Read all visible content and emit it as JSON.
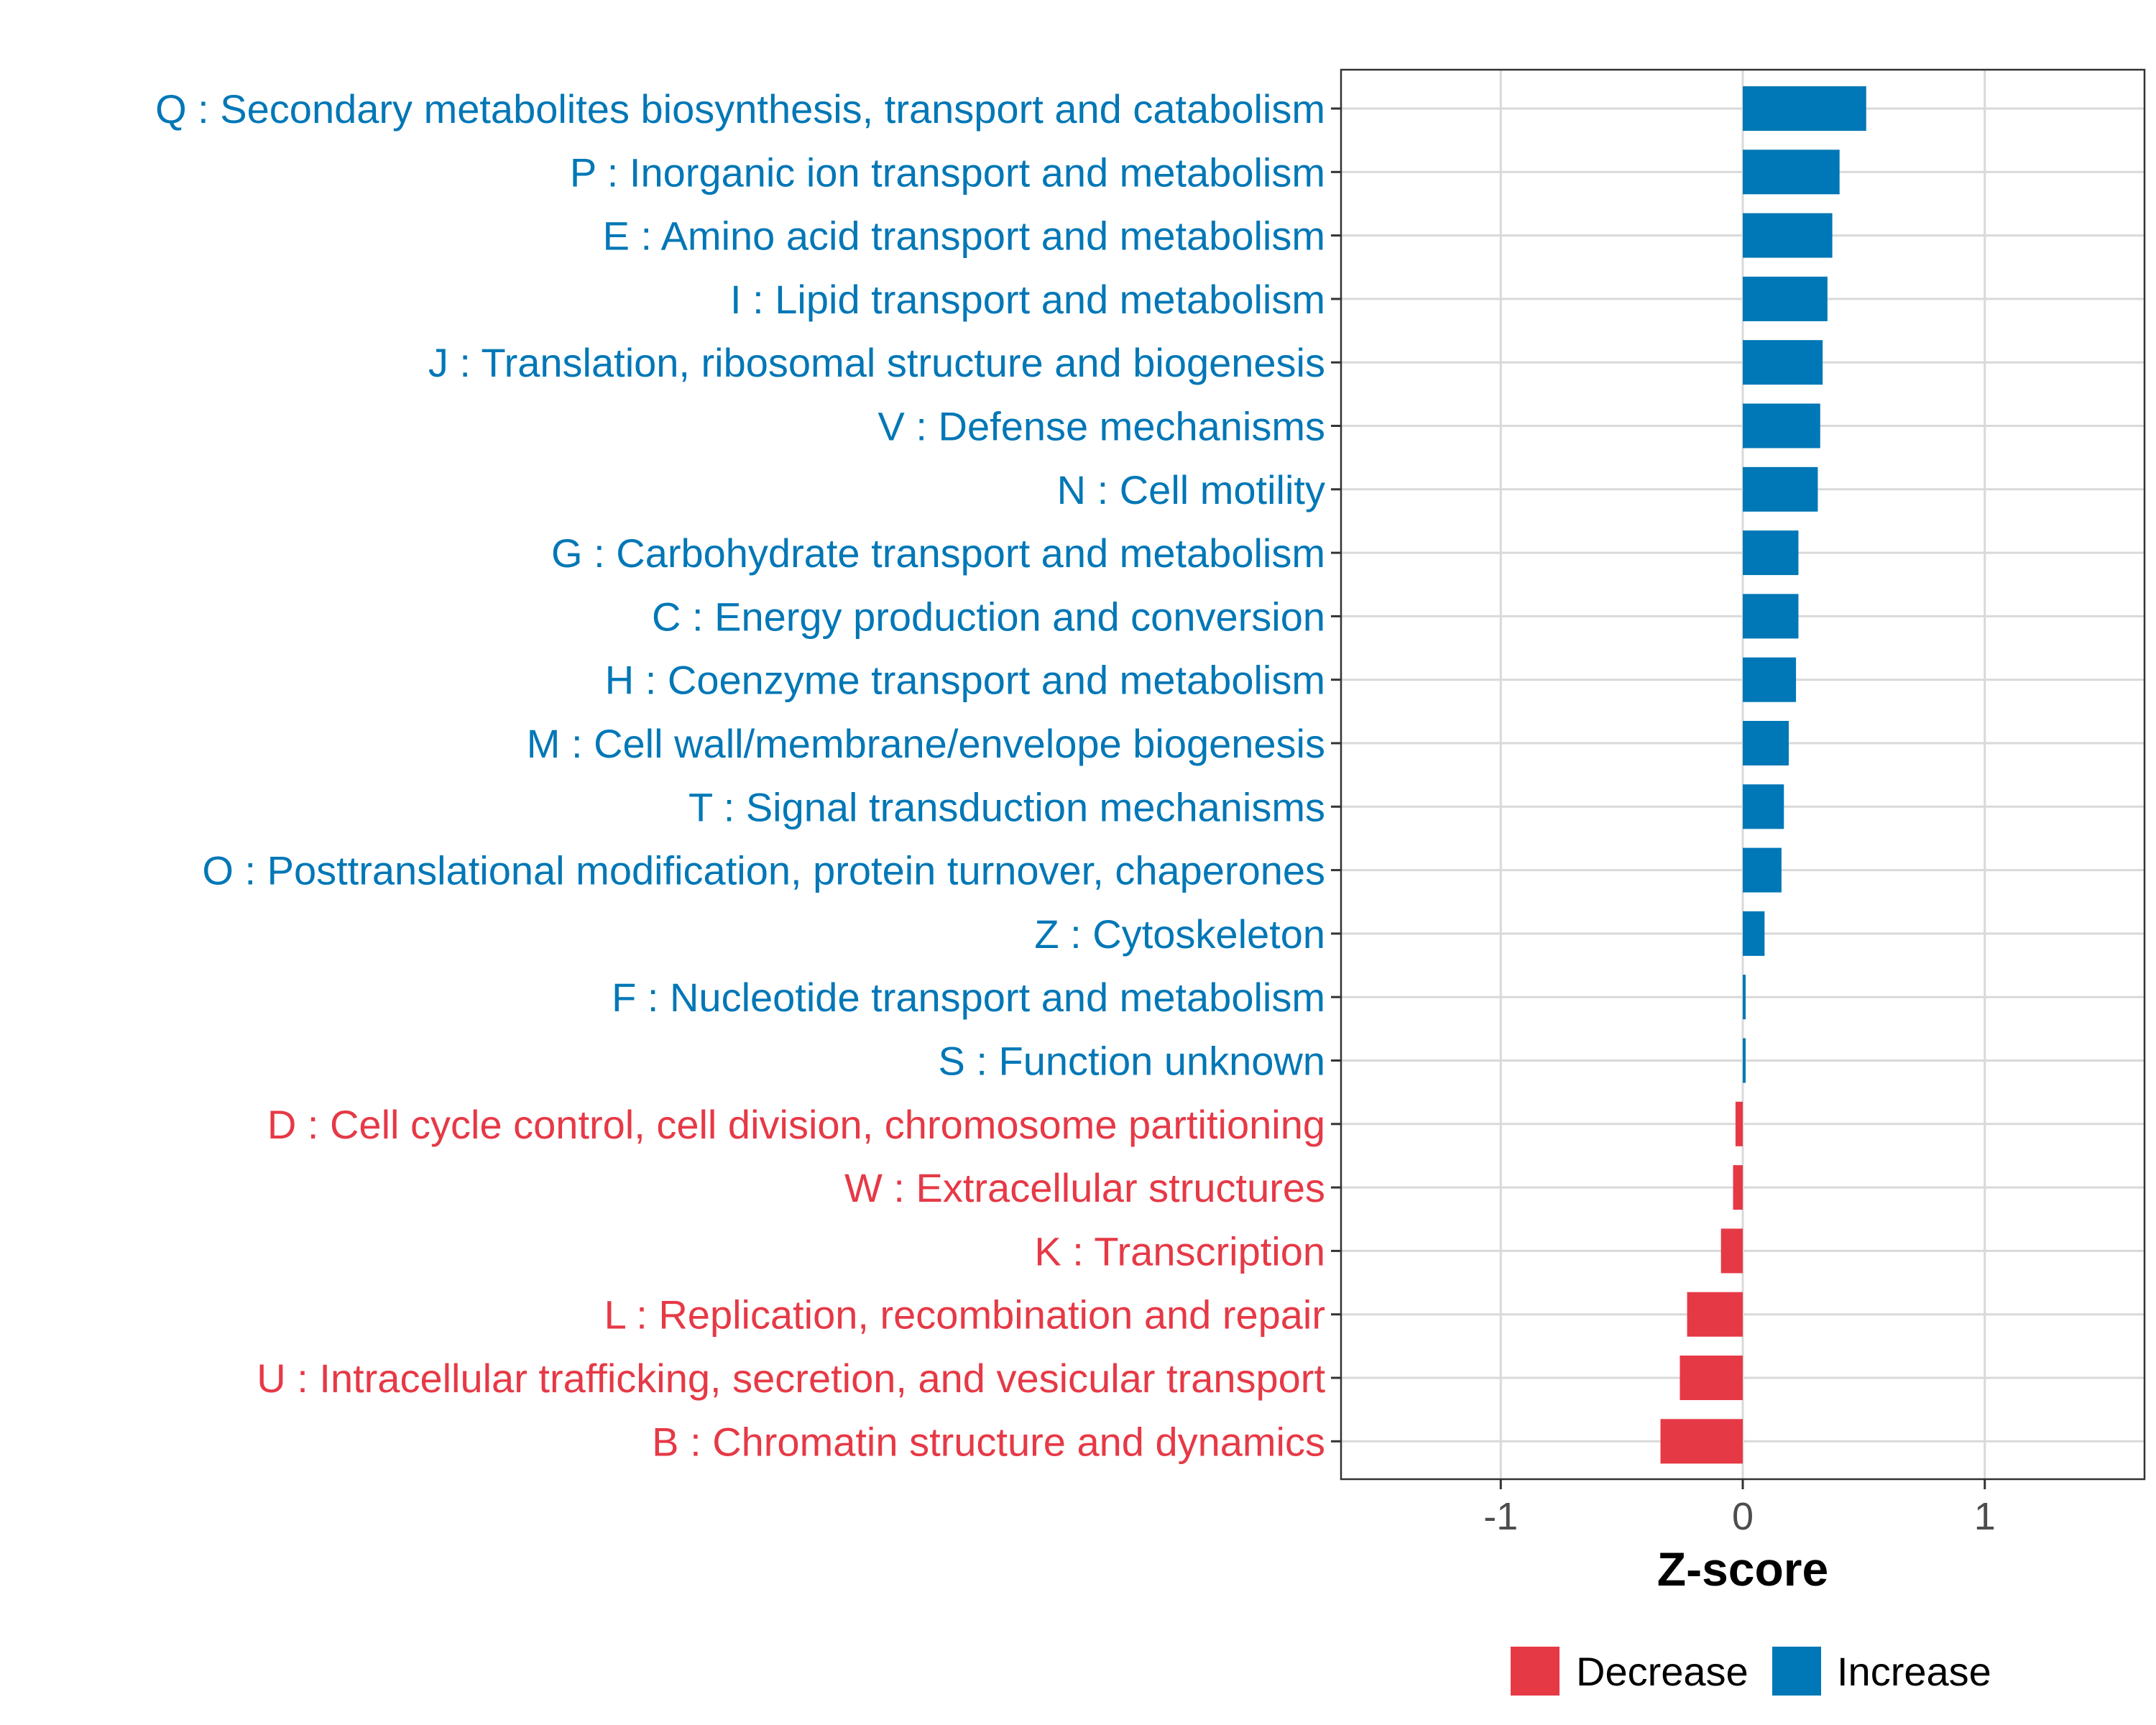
{
  "chart_data": {
    "type": "bar",
    "orientation": "horizontal",
    "xlabel": "Z-score",
    "xlim": [
      -1.66,
      1.66
    ],
    "xticks": [
      -1,
      0,
      1
    ],
    "xtick_labels": [
      "-1",
      "0",
      "1"
    ],
    "grid": true,
    "legend_position": "bottom",
    "legend": [
      {
        "key": "decrease",
        "label": "Decrease",
        "color": "#E63946"
      },
      {
        "key": "increase",
        "label": "Increase",
        "color": "#0077B6"
      }
    ],
    "categories": [
      "Q : Secondary metabolites biosynthesis, transport and catabolism",
      "P : Inorganic ion transport and metabolism",
      "E : Amino acid transport and metabolism",
      "I : Lipid transport and metabolism",
      "J : Translation, ribosomal structure and biogenesis",
      "V : Defense mechanisms",
      "N : Cell motility",
      "G : Carbohydrate transport and metabolism",
      "C : Energy production and conversion",
      "H : Coenzyme transport and metabolism",
      "M : Cell wall/membrane/envelope biogenesis",
      "T : Signal transduction mechanisms",
      "O : Posttranslational modification, protein turnover, chaperones",
      "Z : Cytoskeleton",
      "F : Nucleotide transport and metabolism",
      "S : Function unknown",
      "D : Cell cycle control, cell division, chromosome partitioning",
      "W : Extracellular structures",
      "K : Transcription",
      "L : Replication, recombination and repair",
      "U : Intracellular trafficking, secretion, and vesicular transport",
      "B : Chromatin structure and dynamics"
    ],
    "values": [
      0.51,
      0.4,
      0.37,
      0.35,
      0.33,
      0.32,
      0.31,
      0.23,
      0.23,
      0.22,
      0.19,
      0.17,
      0.16,
      0.09,
      0.01,
      0.01,
      -0.03,
      -0.04,
      -0.09,
      -0.23,
      -0.26,
      -0.34
    ],
    "groups": [
      "increase",
      "increase",
      "increase",
      "increase",
      "increase",
      "increase",
      "increase",
      "increase",
      "increase",
      "increase",
      "increase",
      "increase",
      "increase",
      "increase",
      "increase",
      "increase",
      "decrease",
      "decrease",
      "decrease",
      "decrease",
      "decrease",
      "decrease"
    ]
  }
}
